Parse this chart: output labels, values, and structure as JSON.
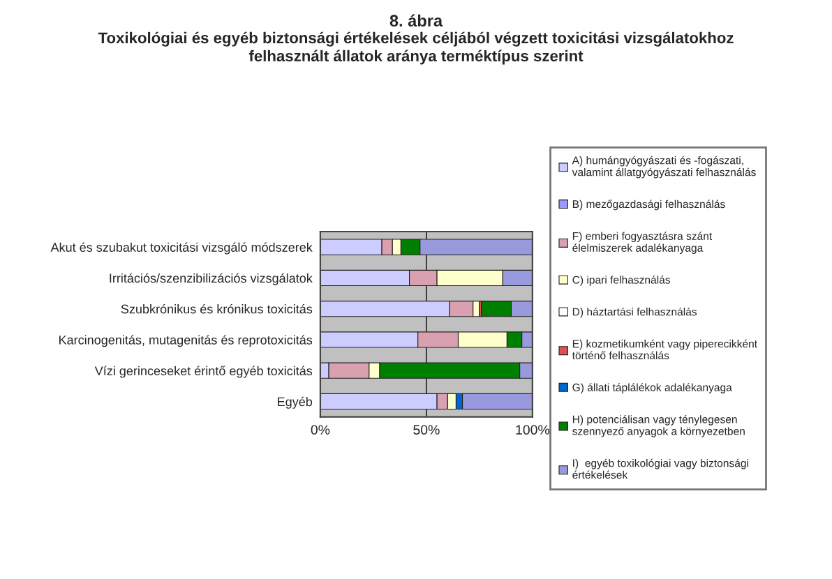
{
  "chart_data": {
    "type": "bar",
    "orientation": "horizontal",
    "stacked": true,
    "title": "8. ábra",
    "subtitle": "Toxikológiai és egyéb biztonsági értékelések céljából végzett toxicitási vizsgálatokhoz\nfelhasznált állatok aránya terméktípus szerint",
    "categories": [
      "Akut és szubakut toxicitási vizsgáló módszerek",
      "Irritációs/szenzibilizációs vizsgálatok",
      "Szubkrónikus és krónikus toxicitás",
      "Karcinogenitás, mutagenitás és reprotoxicitás",
      "Vízi gerinceseket érintő egyéb toxicitás",
      "Egyéb"
    ],
    "series": [
      {
        "name": "A) humángyógyászati és -fogászati,\nvalamint állatgyógyászati felhasználás",
        "color": "#ccccff",
        "values": [
          29,
          42,
          61,
          46,
          4,
          55
        ]
      },
      {
        "name": "B) mezőgazdasági felhasználás",
        "color": "#9999ff",
        "values": [
          0,
          0,
          0,
          0,
          0,
          0
        ]
      },
      {
        "name": "F) emberi fogyasztásra szánt\nélelmiszerek adalékanyaga",
        "color": "#d9a0b0",
        "values": [
          5,
          13,
          11,
          19,
          19,
          5
        ]
      },
      {
        "name": "C) ipari felhasználás",
        "color": "#ffffcc",
        "values": [
          4,
          31,
          3,
          23,
          5,
          4
        ]
      },
      {
        "name": "D) háztartási felhasználás",
        "color": "#ffffff",
        "values": [
          0,
          0,
          0,
          0,
          0,
          0
        ]
      },
      {
        "name": "E) kozmetikumként vagy piperecikként\ntörténő felhasználás",
        "color": "#e05050",
        "values": [
          0,
          0,
          1,
          0,
          0,
          0
        ]
      },
      {
        "name": "G) állati táplálékok adalékanyaga",
        "color": "#0066cc",
        "values": [
          0,
          0,
          0,
          0,
          0,
          3
        ]
      },
      {
        "name": "H) potenciálisan vagy ténylegesen\nszennyező anyagok a környezetben",
        "color": "#008000",
        "values": [
          9,
          0,
          14,
          7,
          66,
          0
        ]
      },
      {
        "name": "I)  egyéb toxikológiai vagy biztonsági\nértékelések",
        "color": "#9999dd",
        "values": [
          53,
          14,
          10,
          5,
          6,
          33
        ]
      }
    ],
    "xlim": [
      0,
      100
    ],
    "xticks": [
      {
        "value": 0,
        "label": "0%"
      },
      {
        "value": 50,
        "label": "50%"
      },
      {
        "value": 100,
        "label": "100%"
      }
    ],
    "grid": "x",
    "legend": "right"
  }
}
